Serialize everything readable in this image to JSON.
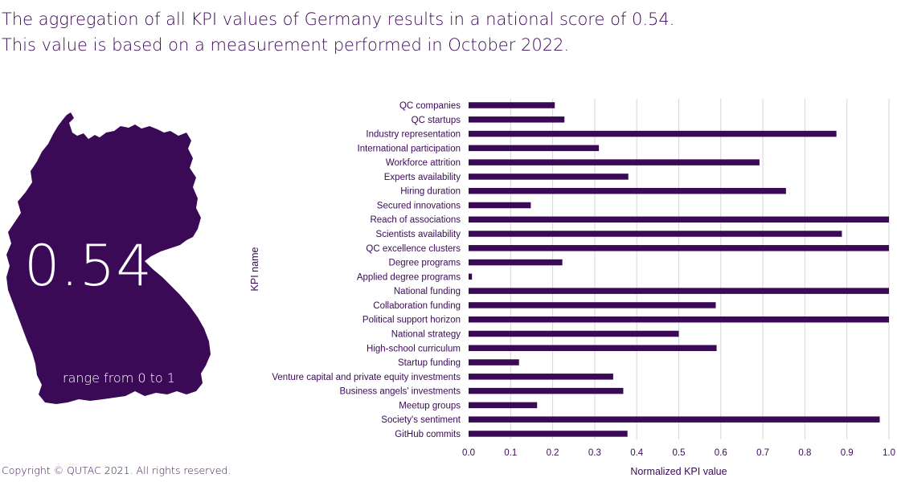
{
  "headline": {
    "line1": "The aggregation of all KPI values of Germany results in a national score of 0.54.",
    "line2": "This value is based on a measurement performed in October 2022."
  },
  "map": {
    "score": "0.54",
    "range_text": "range from 0 to 1",
    "fill_color": "#3b0a57"
  },
  "footer": {
    "copyright": "Copyright © QUTAC 2021. All rights reserved."
  },
  "chart_data": {
    "type": "bar",
    "orientation": "horizontal",
    "xlabel": "Normalized KPI value",
    "ylabel": "KPI name",
    "xlim": [
      0,
      1
    ],
    "xticks": [
      "0.0",
      "0.1",
      "0.2",
      "0.3",
      "0.4",
      "0.5",
      "0.6",
      "0.7",
      "0.8",
      "0.9",
      "1.0"
    ],
    "grid": "vertical",
    "bar_color": "#3b0a57",
    "categories": [
      "QC companies",
      "QC startups",
      "Industry representation",
      "International participation",
      "Workforce attrition",
      "Experts availability",
      "Hiring duration",
      "Secured innovations",
      "Reach of associations",
      "Scientists availability",
      "QC excellence clusters",
      "Degree programs",
      "Applied degree programs",
      "National funding",
      "Collaboration funding",
      "Political support horizon",
      "National strategy",
      "High-school curriculum",
      "Startup funding",
      "Venture capital and private equity investments",
      "Business angels' investments",
      "Meetup groups",
      "Society's sentiment",
      "GitHub commits"
    ],
    "values": [
      0.205,
      0.228,
      0.875,
      0.31,
      0.692,
      0.38,
      0.755,
      0.148,
      1.0,
      0.888,
      1.0,
      0.223,
      0.008,
      1.0,
      0.588,
      1.0,
      0.5,
      0.59,
      0.12,
      0.344,
      0.368,
      0.163,
      0.978,
      0.378
    ]
  }
}
